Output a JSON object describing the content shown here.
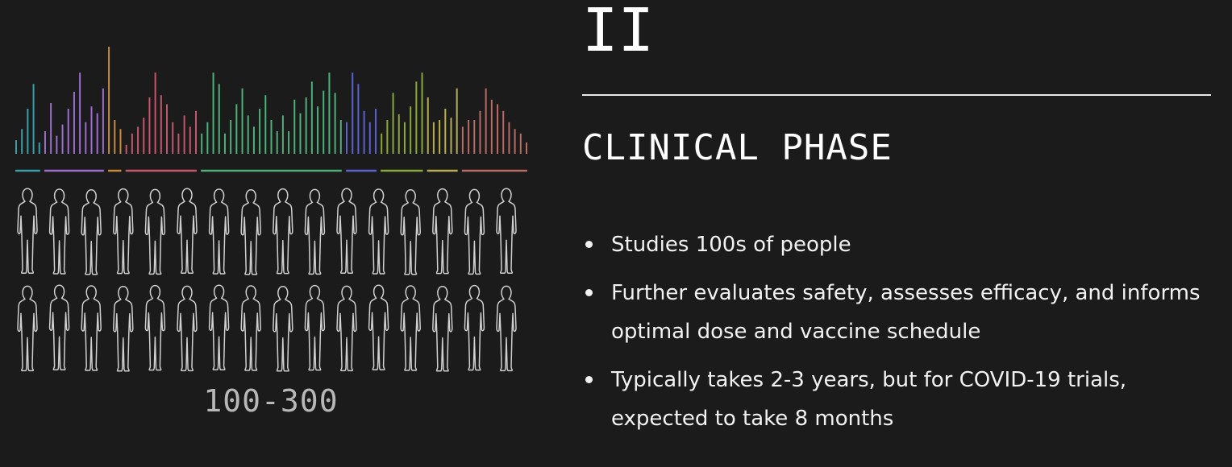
{
  "phase": {
    "numeral": "II",
    "title": "CLINICAL PHASE",
    "facts": [
      "Studies 100s of people",
      "Further evaluates safety, assesses efficacy, and informs optimal dose and vaccine schedule",
      "Typically takes 2-3 years, but for COVID-19 trials, expected to take 8 months"
    ]
  },
  "illustration": {
    "people_count": "100-300",
    "people_rows": 2,
    "people_per_row": 16,
    "person_icon": "person-silhouette-icon",
    "bar_values": [
      0.12,
      0.22,
      0.4,
      0.62,
      0.1,
      0.2,
      0.45,
      0.16,
      0.26,
      0.4,
      0.55,
      0.72,
      0.28,
      0.42,
      0.36,
      0.58,
      0.95,
      0.3,
      0.22,
      0.08,
      0.18,
      0.24,
      0.32,
      0.5,
      0.72,
      0.52,
      0.44,
      0.28,
      0.18,
      0.34,
      0.24,
      0.38,
      0.18,
      0.28,
      0.72,
      0.62,
      0.18,
      0.3,
      0.44,
      0.58,
      0.34,
      0.24,
      0.4,
      0.52,
      0.3,
      0.2,
      0.34,
      0.2,
      0.48,
      0.36,
      0.5,
      0.64,
      0.42,
      0.56,
      0.72,
      0.54,
      0.3,
      0.28,
      0.72,
      0.62,
      0.38,
      0.28,
      0.4,
      0.18,
      0.3,
      0.54,
      0.35,
      0.28,
      0.42,
      0.64,
      0.72,
      0.5,
      0.28,
      0.3,
      0.4,
      0.32,
      0.58,
      0.24,
      0.3,
      0.3,
      0.38,
      0.58,
      0.48,
      0.44,
      0.38,
      0.28,
      0.22,
      0.18,
      0.1
    ],
    "groups": [
      {
        "color": "#3a9fa8",
        "bars": 5
      },
      {
        "color": "#9d6dd0",
        "bars": 11
      },
      {
        "color": "#c98a3c",
        "bars": 3
      },
      {
        "color": "#c4566e",
        "bars": 13
      },
      {
        "color": "#4fb07a",
        "bars": 25
      },
      {
        "color": "#5b62d0",
        "bars": 6
      },
      {
        "color": "#8aa83c",
        "bars": 8
      },
      {
        "color": "#b8ad52",
        "bars": 6
      },
      {
        "color": "#b86b64",
        "bars": 12
      }
    ]
  }
}
